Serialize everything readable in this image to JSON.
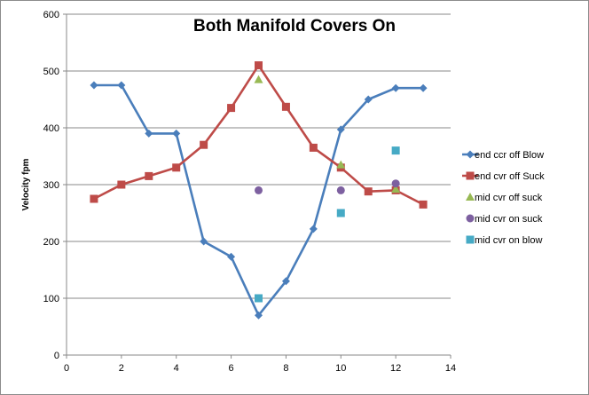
{
  "chart_data": {
    "type": "scatter",
    "title": "Both Manifold Covers On",
    "xlabel": "",
    "ylabel": "Velocity fpm",
    "xlim": [
      0,
      14
    ],
    "ylim": [
      0,
      600
    ],
    "xticks": [
      0,
      2,
      4,
      6,
      8,
      10,
      12,
      14
    ],
    "yticks": [
      0,
      100,
      200,
      300,
      400,
      500,
      600
    ],
    "grid": "horizontal",
    "legend_position": "right",
    "series": [
      {
        "name": "end ccr off Blow",
        "color": "#4a7ebb",
        "marker": "diamond",
        "line": true,
        "points": [
          [
            1,
            475
          ],
          [
            2,
            475
          ],
          [
            3,
            390
          ],
          [
            4,
            390
          ],
          [
            5,
            200
          ],
          [
            6,
            173
          ],
          [
            7,
            70
          ],
          [
            8,
            130
          ],
          [
            9,
            222
          ],
          [
            10,
            397
          ],
          [
            11,
            450
          ],
          [
            12,
            470
          ],
          [
            13,
            470
          ]
        ]
      },
      {
        "name": "end cvr off Suck",
        "color": "#be4b48",
        "marker": "square",
        "line": true,
        "points": [
          [
            1,
            275
          ],
          [
            2,
            300
          ],
          [
            3,
            315
          ],
          [
            4,
            330
          ],
          [
            5,
            370
          ],
          [
            6,
            435
          ],
          [
            7,
            510
          ],
          [
            8,
            437
          ],
          [
            9,
            365
          ],
          [
            10,
            330
          ],
          [
            11,
            288
          ],
          [
            12,
            290
          ],
          [
            13,
            265
          ]
        ]
      },
      {
        "name": "mid cvr off suck",
        "color": "#98b954",
        "marker": "triangle",
        "line": false,
        "points": [
          [
            7,
            485
          ],
          [
            10,
            335
          ],
          [
            12,
            292
          ]
        ]
      },
      {
        "name": "mid cvr on suck",
        "color": "#7d60a0",
        "marker": "circle",
        "line": false,
        "points": [
          [
            7,
            290
          ],
          [
            10,
            290
          ],
          [
            12,
            302
          ]
        ]
      },
      {
        "name": "mid cvr on blow",
        "color": "#46aac5",
        "marker": "square",
        "line": false,
        "points": [
          [
            7,
            100
          ],
          [
            10,
            250
          ],
          [
            12,
            360
          ]
        ]
      }
    ]
  }
}
